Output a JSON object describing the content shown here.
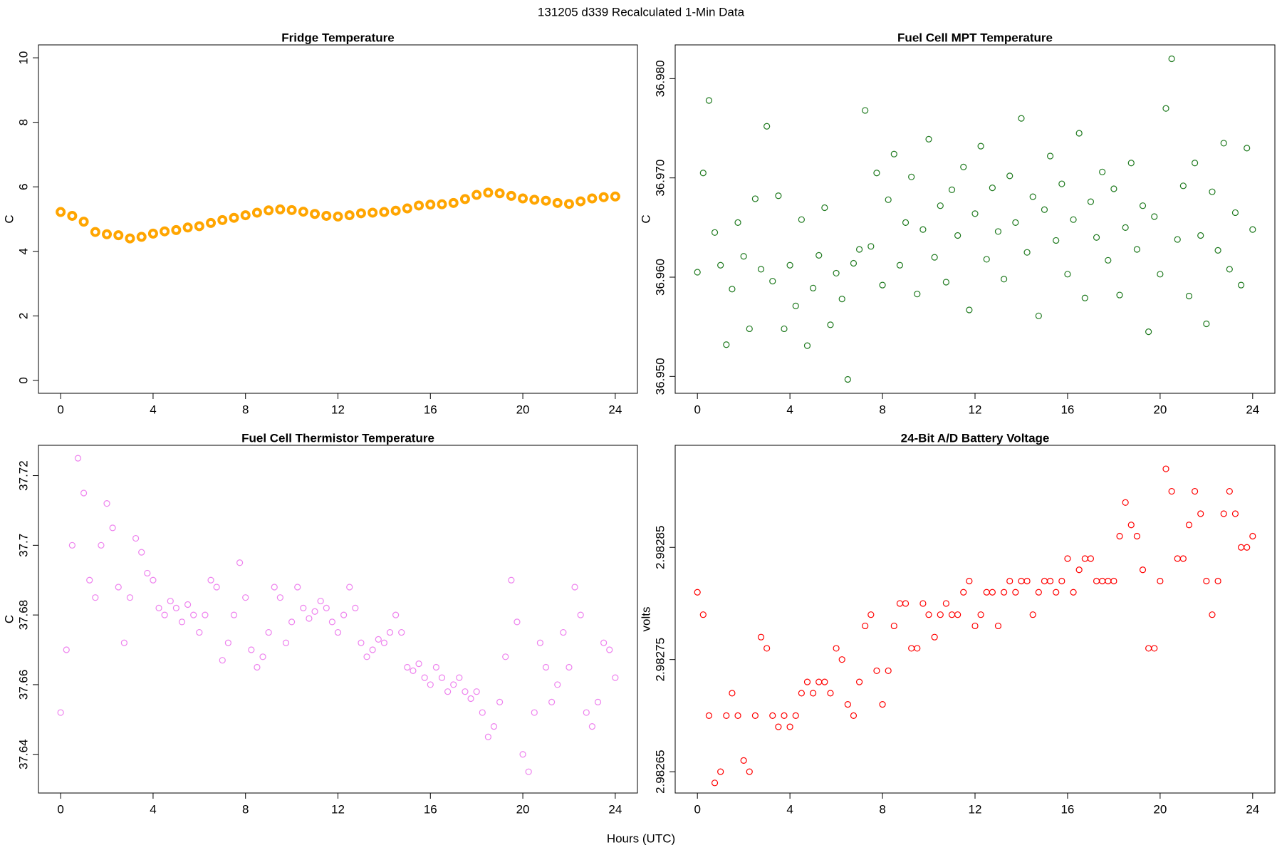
{
  "title": "131205   d339   Recalculated 1-Min Data",
  "xlabel": "Hours (UTC)",
  "chart_data": [
    {
      "type": "scatter",
      "title": "Fridge Temperature",
      "ylabel": "C",
      "color": "#ffa500",
      "marker": "open-circle",
      "x": [
        0,
        0.5,
        1,
        1.5,
        2,
        2.5,
        3,
        3.5,
        4,
        4.5,
        5,
        5.5,
        6,
        6.5,
        7,
        7.5,
        8,
        8.5,
        9,
        9.5,
        10,
        10.5,
        11,
        11.5,
        12,
        12.5,
        13,
        13.5,
        14,
        14.5,
        15,
        15.5,
        16,
        16.5,
        17,
        17.5,
        18,
        18.5,
        19,
        19.5,
        20,
        20.5,
        21,
        21.5,
        22,
        22.5,
        23,
        23.5,
        24
      ],
      "values": [
        5.22,
        5.1,
        4.92,
        4.6,
        4.53,
        4.5,
        4.4,
        4.45,
        4.55,
        4.62,
        4.66,
        4.74,
        4.78,
        4.88,
        4.97,
        5.04,
        5.12,
        5.2,
        5.27,
        5.3,
        5.28,
        5.23,
        5.16,
        5.1,
        5.08,
        5.12,
        5.18,
        5.2,
        5.22,
        5.26,
        5.33,
        5.42,
        5.45,
        5.46,
        5.5,
        5.62,
        5.75,
        5.82,
        5.8,
        5.72,
        5.64,
        5.6,
        5.57,
        5.5,
        5.47,
        5.55,
        5.64,
        5.68,
        5.7
      ],
      "xlim": [
        -0.96,
        24.96
      ],
      "ylim": [
        -0.4,
        10.4
      ],
      "xticks": [
        0,
        4,
        8,
        12,
        16,
        20,
        24
      ],
      "yticks": [
        0,
        2,
        4,
        6,
        8,
        10
      ]
    },
    {
      "type": "scatter",
      "title": "Fuel Cell MPT Temperature",
      "ylabel": "C",
      "color": "#1f7a1f",
      "marker": "open-circle",
      "x": [
        0,
        0.25,
        0.5,
        0.75,
        1,
        1.25,
        1.5,
        1.75,
        2,
        2.25,
        2.5,
        2.75,
        3,
        3.25,
        3.5,
        3.75,
        4,
        4.25,
        4.5,
        4.75,
        5,
        5.25,
        5.5,
        5.75,
        6,
        6.25,
        6.5,
        6.75,
        7,
        7.25,
        7.5,
        7.75,
        8,
        8.25,
        8.5,
        8.75,
        9,
        9.25,
        9.5,
        9.75,
        10,
        10.25,
        10.5,
        10.75,
        11,
        11.25,
        11.5,
        11.75,
        12,
        12.25,
        12.5,
        12.75,
        13,
        13.25,
        13.5,
        13.75,
        14,
        14.25,
        14.5,
        14.75,
        15,
        15.25,
        15.5,
        15.75,
        16,
        16.25,
        16.5,
        16.75,
        17,
        17.25,
        17.5,
        17.75,
        18,
        18.25,
        18.5,
        18.75,
        19,
        19.25,
        19.5,
        19.75,
        20,
        20.25,
        20.5,
        20.75,
        21,
        21.25,
        21.5,
        21.75,
        22,
        22.25,
        22.5,
        22.75,
        23,
        23.25,
        23.5,
        23.75,
        24
      ],
      "values": [
        36.9605,
        36.9705,
        36.9778,
        36.9645,
        36.9612,
        36.9532,
        36.9588,
        36.9655,
        36.9621,
        36.9548,
        36.9679,
        36.9608,
        36.9752,
        36.9596,
        36.9682,
        36.9548,
        36.9612,
        36.9571,
        36.9658,
        36.9531,
        36.9589,
        36.9622,
        36.967,
        36.9552,
        36.9604,
        36.9578,
        36.9497,
        36.9614,
        36.9628,
        36.9768,
        36.9631,
        36.9705,
        36.9592,
        36.9678,
        36.9724,
        36.9612,
        36.9655,
        36.9701,
        36.9583,
        36.9648,
        36.9739,
        36.962,
        36.9672,
        36.9595,
        36.9688,
        36.9642,
        36.9711,
        36.9567,
        36.9664,
        36.9732,
        36.9618,
        36.969,
        36.9646,
        36.9598,
        36.9702,
        36.9655,
        36.976,
        36.9625,
        36.9681,
        36.9561,
        36.9668,
        36.9722,
        36.9637,
        36.9694,
        36.9603,
        36.9658,
        36.9745,
        36.9579,
        36.9676,
        36.964,
        36.9706,
        36.9617,
        36.9689,
        36.9582,
        36.965,
        36.9715,
        36.9628,
        36.9672,
        36.9545,
        36.9661,
        36.9603,
        36.977,
        36.982,
        36.9638,
        36.9692,
        36.9581,
        36.9715,
        36.9642,
        36.9553,
        36.9686,
        36.9627,
        36.9735,
        36.9608,
        36.9665,
        36.9592,
        36.973,
        36.9648
      ],
      "xlim": [
        -0.96,
        24.96
      ],
      "ylim": [
        36.9483,
        36.9834
      ],
      "xticks": [
        0,
        4,
        8,
        12,
        16,
        20,
        24
      ],
      "yticks": [
        {
          "value": 36.95,
          "label": "36.950"
        },
        {
          "value": 36.96,
          "label": "36.960"
        },
        {
          "value": 36.97,
          "label": "36.970"
        },
        {
          "value": 36.98,
          "label": "36.980"
        }
      ]
    },
    {
      "type": "scatter",
      "title": "Fuel Cell Thermistor Temperature",
      "ylabel": "C",
      "color": "#ee82ee",
      "marker": "open-circle",
      "x": [
        0,
        0.25,
        0.5,
        0.75,
        1,
        1.25,
        1.5,
        1.75,
        2,
        2.25,
        2.5,
        2.75,
        3,
        3.25,
        3.5,
        3.75,
        4,
        4.25,
        4.5,
        4.75,
        5,
        5.25,
        5.5,
        5.75,
        6,
        6.25,
        6.5,
        6.75,
        7,
        7.25,
        7.5,
        7.75,
        8,
        8.25,
        8.5,
        8.75,
        9,
        9.25,
        9.5,
        9.75,
        10,
        10.25,
        10.5,
        10.75,
        11,
        11.25,
        11.5,
        11.75,
        12,
        12.25,
        12.5,
        12.75,
        13,
        13.25,
        13.5,
        13.75,
        14,
        14.25,
        14.5,
        14.75,
        15,
        15.25,
        15.5,
        15.75,
        16,
        16.25,
        16.5,
        16.75,
        17,
        17.25,
        17.5,
        17.75,
        18,
        18.25,
        18.5,
        18.75,
        19,
        19.25,
        19.5,
        19.75,
        20,
        20.25,
        20.5,
        20.75,
        21,
        21.25,
        21.5,
        21.75,
        22,
        22.25,
        22.5,
        22.75,
        23,
        23.25,
        23.5,
        23.75,
        24
      ],
      "values": [
        37.652,
        37.67,
        37.7,
        37.725,
        37.715,
        37.69,
        37.685,
        37.7,
        37.712,
        37.705,
        37.688,
        37.672,
        37.685,
        37.702,
        37.698,
        37.692,
        37.69,
        37.682,
        37.68,
        37.684,
        37.682,
        37.678,
        37.683,
        37.68,
        37.675,
        37.68,
        37.69,
        37.688,
        37.667,
        37.672,
        37.68,
        37.695,
        37.685,
        37.67,
        37.665,
        37.668,
        37.675,
        37.688,
        37.685,
        37.672,
        37.678,
        37.688,
        37.682,
        37.679,
        37.681,
        37.684,
        37.682,
        37.678,
        37.675,
        37.68,
        37.688,
        37.682,
        37.672,
        37.668,
        37.67,
        37.673,
        37.672,
        37.675,
        37.68,
        37.675,
        37.665,
        37.664,
        37.666,
        37.662,
        37.66,
        37.665,
        37.662,
        37.658,
        37.66,
        37.662,
        37.658,
        37.656,
        37.658,
        37.652,
        37.645,
        37.648,
        37.655,
        37.668,
        37.69,
        37.678,
        37.64,
        37.635,
        37.652,
        37.672,
        37.665,
        37.655,
        37.66,
        37.675,
        37.665,
        37.688,
        37.68,
        37.652,
        37.648,
        37.655,
        37.672,
        37.67,
        37.662
      ],
      "xlim": [
        -0.96,
        24.96
      ],
      "ylim": [
        37.6289,
        37.7287
      ],
      "xticks": [
        0,
        4,
        8,
        12,
        16,
        20,
        24
      ],
      "yticks": [
        37.64,
        37.66,
        37.68,
        37.7,
        37.72
      ]
    },
    {
      "type": "scatter",
      "title": "24-Bit A/D Battery Voltage",
      "ylabel": "volts",
      "color": "#ff0000",
      "marker": "open-circle",
      "x": [
        0,
        0.25,
        0.5,
        0.75,
        1,
        1.25,
        1.5,
        1.75,
        2,
        2.25,
        2.5,
        2.75,
        3,
        3.25,
        3.5,
        3.75,
        4,
        4.25,
        4.5,
        4.75,
        5,
        5.25,
        5.5,
        5.75,
        6,
        6.25,
        6.5,
        6.75,
        7,
        7.25,
        7.5,
        7.75,
        8,
        8.25,
        8.5,
        8.75,
        9,
        9.25,
        9.5,
        9.75,
        10,
        10.25,
        10.5,
        10.75,
        11,
        11.25,
        11.5,
        11.75,
        12,
        12.25,
        12.5,
        12.75,
        13,
        13.25,
        13.5,
        13.75,
        14,
        14.25,
        14.5,
        14.75,
        15,
        15.25,
        15.5,
        15.75,
        16,
        16.25,
        16.5,
        16.75,
        17,
        17.25,
        17.5,
        17.75,
        18,
        18.25,
        18.5,
        18.75,
        19,
        19.25,
        19.5,
        19.75,
        20,
        20.25,
        20.5,
        20.75,
        21,
        21.25,
        21.5,
        21.75,
        22,
        22.25,
        22.5,
        22.75,
        23,
        23.25,
        23.5,
        23.75,
        24
      ],
      "values": [
        2.98281,
        2.98279,
        2.9827,
        2.98264,
        2.98265,
        2.9827,
        2.98272,
        2.9827,
        2.98266,
        2.98265,
        2.9827,
        2.98277,
        2.98276,
        2.9827,
        2.98269,
        2.9827,
        2.98269,
        2.9827,
        2.98272,
        2.98273,
        2.98272,
        2.98273,
        2.98273,
        2.98272,
        2.98276,
        2.98275,
        2.98271,
        2.9827,
        2.98273,
        2.98278,
        2.98279,
        2.98274,
        2.98271,
        2.98274,
        2.98278,
        2.9828,
        2.9828,
        2.98276,
        2.98276,
        2.9828,
        2.98279,
        2.98277,
        2.98279,
        2.9828,
        2.98279,
        2.98279,
        2.98281,
        2.98282,
        2.98278,
        2.98279,
        2.98281,
        2.98281,
        2.98278,
        2.98281,
        2.98282,
        2.98281,
        2.98282,
        2.98282,
        2.98279,
        2.98281,
        2.98282,
        2.98282,
        2.98281,
        2.98282,
        2.98284,
        2.98281,
        2.98283,
        2.98284,
        2.98284,
        2.98282,
        2.98282,
        2.98282,
        2.98282,
        2.98286,
        2.98289,
        2.98287,
        2.98286,
        2.98283,
        2.98276,
        2.98276,
        2.98282,
        2.98292,
        2.9829,
        2.98284,
        2.98284,
        2.98287,
        2.9829,
        2.98288,
        2.98282,
        2.98279,
        2.98282,
        2.98288,
        2.9829,
        2.98288,
        2.98285,
        2.98285,
        2.98286
      ],
      "xlim": [
        -0.96,
        24.96
      ],
      "ylim": [
        2.982631,
        2.982941
      ],
      "xticks": [
        0,
        4,
        8,
        12,
        16,
        20,
        24
      ],
      "yticks": [
        2.98265,
        2.98275,
        2.98285
      ]
    }
  ]
}
